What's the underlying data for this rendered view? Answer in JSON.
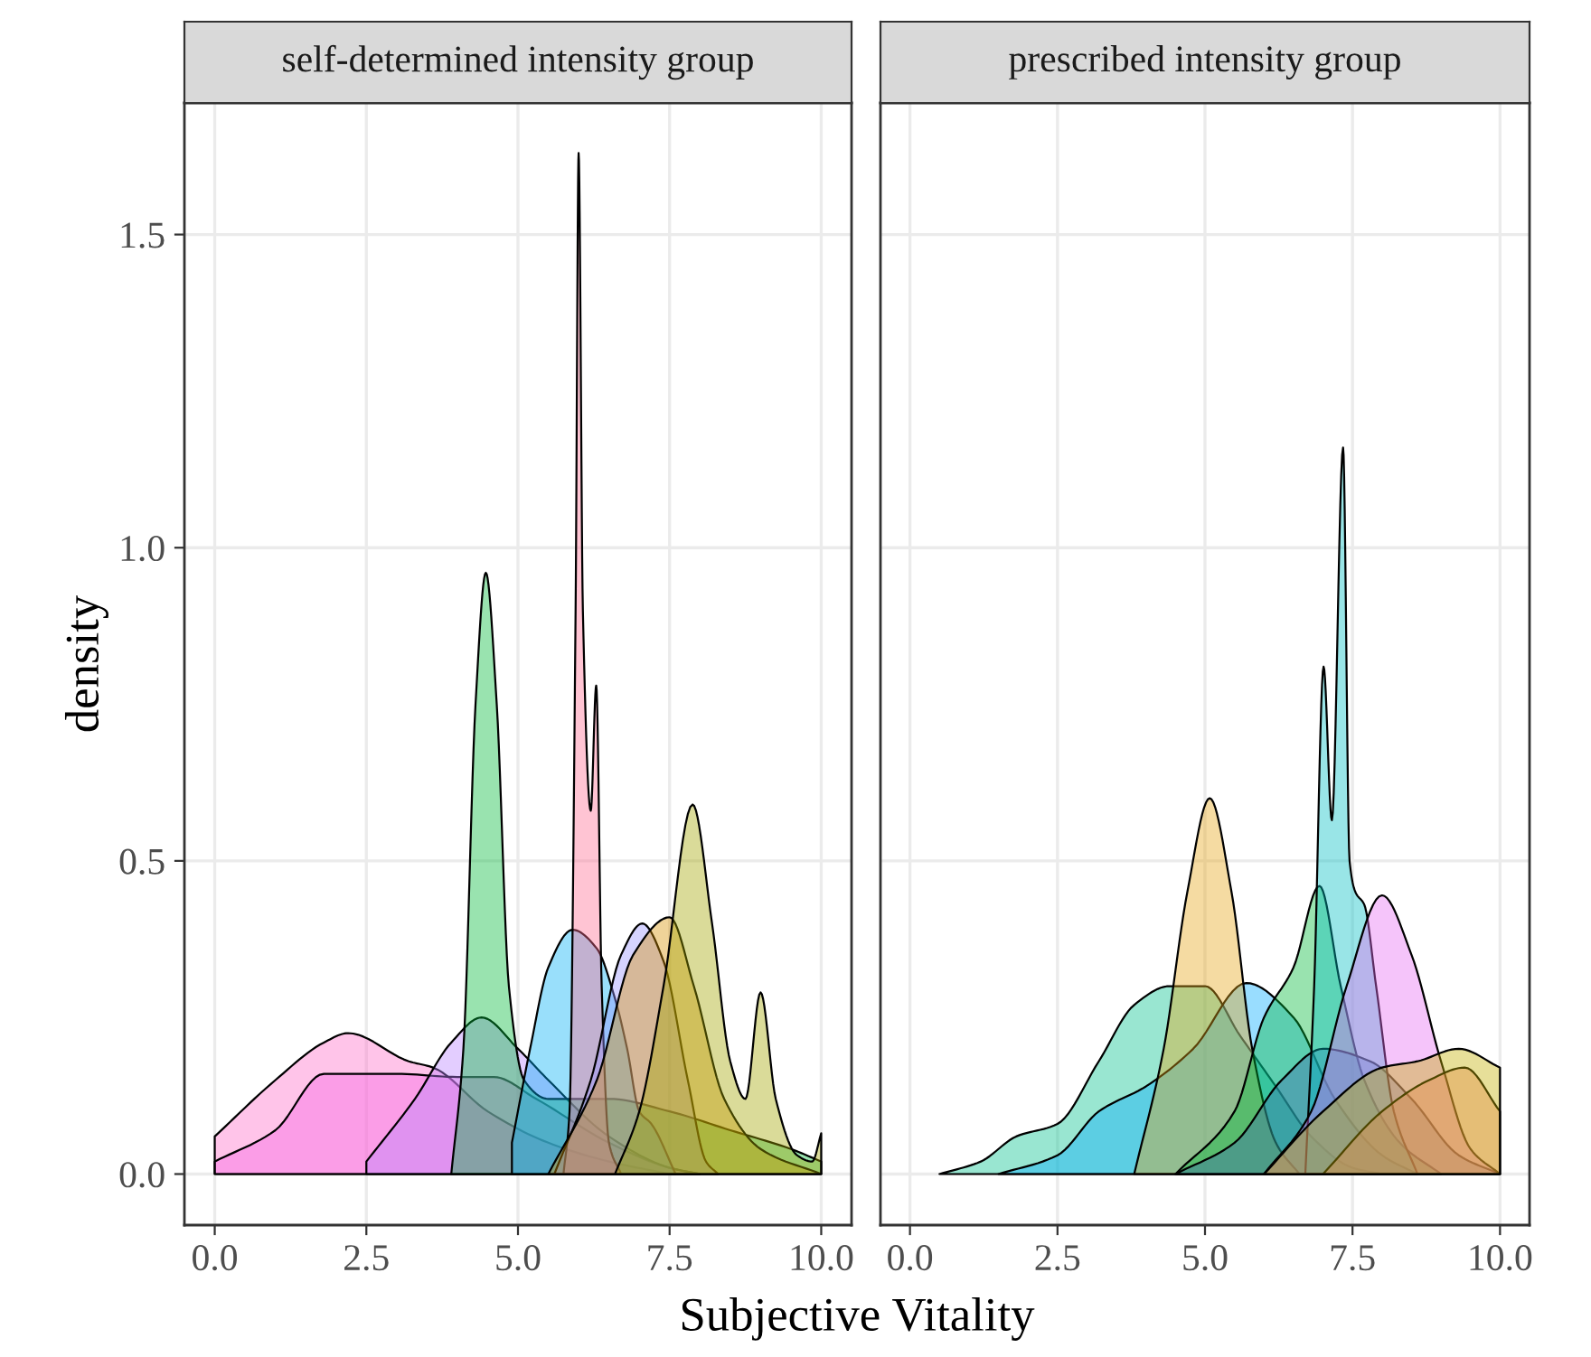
{
  "chart_data": [
    {
      "type": "area",
      "title": "self-determined intensity group",
      "xlabel": "Subjective Vitality",
      "ylabel": "density",
      "xlim": [
        -0.5,
        10.5
      ],
      "ylim": [
        -0.0815,
        1.71
      ],
      "xticks": [
        {
          "value": 0,
          "label": "0.0"
        },
        {
          "value": 2.5,
          "label": "2.5"
        },
        {
          "value": 5,
          "label": "5.0"
        },
        {
          "value": 7.5,
          "label": "7.5"
        },
        {
          "value": 10,
          "label": "10.0"
        }
      ],
      "yticks": [
        {
          "value": 0,
          "label": "0.0"
        },
        {
          "value": 0.5,
          "label": "0.5"
        },
        {
          "value": 1,
          "label": "1.0"
        },
        {
          "value": 1.5,
          "label": "1.5"
        }
      ],
      "grid": true,
      "series": [
        {
          "color": "#FF6CC8",
          "x": [
            0,
            1,
            1.8,
            2.2,
            3.2,
            3.6,
            4.5,
            5.5,
            6.5,
            7.5
          ],
          "values": [
            0.06,
            0.15,
            0.21,
            0.225,
            0.18,
            0.17,
            0.1,
            0.05,
            0.02,
            0
          ]
        },
        {
          "color": "#F564E3",
          "x": [
            0,
            1,
            1.8,
            3,
            4,
            4.6,
            5.3,
            6.5,
            7.5,
            8
          ],
          "values": [
            0.02,
            0.07,
            0.16,
            0.16,
            0.155,
            0.155,
            0.12,
            0.05,
            0.01,
            0
          ]
        },
        {
          "color": "#B983FF",
          "x": [
            2.5,
            3.3,
            3.9,
            4.4,
            5.0,
            5.5,
            6.5,
            7.5,
            8
          ],
          "values": [
            0.02,
            0.12,
            0.21,
            0.25,
            0.2,
            0.15,
            0.06,
            0.01,
            0
          ]
        },
        {
          "color": "#00BA38",
          "x": [
            3.9,
            4.1,
            4.3,
            4.47,
            4.65,
            4.85,
            5.1,
            5.5,
            6.5,
            7.5,
            8.5,
            9.5,
            10
          ],
          "values": [
            0,
            0.2,
            0.75,
            0.96,
            0.75,
            0.3,
            0.15,
            0.12,
            0.12,
            0.1,
            0.07,
            0.04,
            0.02
          ]
        },
        {
          "color": "#00B0F6",
          "x": [
            4.9,
            5.2,
            5.5,
            5.9,
            6.3,
            6.6,
            6.8,
            7.0,
            7.2,
            7.6
          ],
          "values": [
            0.05,
            0.2,
            0.33,
            0.39,
            0.36,
            0.28,
            0.2,
            0.1,
            0.08,
            0
          ]
        },
        {
          "color": "#FF6C91",
          "x": [
            5.75,
            5.85,
            5.95,
            6.0,
            6.07,
            6.2,
            6.29,
            6.38,
            6.5,
            6.7
          ],
          "values": [
            0,
            0.1,
            0.9,
            1.63,
            0.9,
            0.58,
            0.78,
            0.3,
            0.05,
            0
          ]
        },
        {
          "color": "#9590FF",
          "x": [
            5.6,
            6.2,
            6.7,
            7.05,
            7.4,
            7.8,
            8.1,
            8.3
          ],
          "values": [
            0,
            0.15,
            0.35,
            0.4,
            0.34,
            0.15,
            0.02,
            0
          ]
        },
        {
          "color": "#D89000",
          "x": [
            5.5,
            6.3,
            6.9,
            7.5,
            7.9,
            8.4,
            9,
            10
          ],
          "values": [
            0,
            0.15,
            0.35,
            0.41,
            0.3,
            0.12,
            0.04,
            0
          ]
        },
        {
          "color": "#A3A500",
          "x": [
            6.6,
            7.0,
            7.4,
            7.88,
            8.2,
            8.5,
            8.75,
            9.0,
            9.25,
            9.6,
            9.85,
            10
          ],
          "values": [
            0,
            0.1,
            0.3,
            0.59,
            0.4,
            0.18,
            0.12,
            0.29,
            0.12,
            0.03,
            0.02,
            0.065
          ]
        }
      ]
    },
    {
      "type": "area",
      "title": "prescribed intensity group",
      "xlim": [
        -0.5,
        10.5
      ],
      "ylim": [
        -0.0815,
        1.71
      ],
      "xticks": [
        {
          "value": 0,
          "label": "0.0"
        },
        {
          "value": 2.5,
          "label": "2.5"
        },
        {
          "value": 5,
          "label": "5.0"
        },
        {
          "value": 7.5,
          "label": "7.5"
        },
        {
          "value": 10,
          "label": "10.0"
        }
      ],
      "yticks": [
        0,
        0.5,
        1,
        1.5
      ],
      "grid": true,
      "tick_labels": "x",
      "series": [
        {
          "color": "#00C08B",
          "x": [
            0.5,
            1.2,
            1.8,
            2.5,
            3.2,
            3.8,
            4.4,
            5.0,
            5.6,
            6.2,
            6.8,
            7.5,
            8
          ],
          "values": [
            0,
            0.02,
            0.06,
            0.08,
            0.18,
            0.27,
            0.3,
            0.3,
            0.22,
            0.14,
            0.06,
            0.01,
            0
          ]
        },
        {
          "color": "#00A9FF",
          "x": [
            1.5,
            2.5,
            3.2,
            4.0,
            4.8,
            5.7,
            6.5,
            7.2,
            8,
            8.6
          ],
          "values": [
            0,
            0.03,
            0.1,
            0.14,
            0.2,
            0.305,
            0.25,
            0.12,
            0.03,
            0
          ]
        },
        {
          "color": "#E7A416",
          "x": [
            3.8,
            4.3,
            4.7,
            5.08,
            5.45,
            5.8,
            6.2,
            6.6
          ],
          "values": [
            0,
            0.2,
            0.45,
            0.6,
            0.45,
            0.2,
            0.05,
            0
          ]
        },
        {
          "color": "#00BA38",
          "x": [
            4.5,
            5.5,
            6.0,
            6.5,
            6.94,
            7.3,
            7.7,
            8.3,
            9
          ],
          "values": [
            0,
            0.1,
            0.25,
            0.33,
            0.46,
            0.3,
            0.15,
            0.05,
            0
          ]
        },
        {
          "color": "#3E6FB0",
          "x": [
            4.5,
            5.5,
            6.3,
            7.0,
            7.8,
            8.5,
            9.3,
            10
          ],
          "values": [
            0,
            0.05,
            0.15,
            0.2,
            0.18,
            0.12,
            0.03,
            0
          ]
        },
        {
          "color": "#00BFC4",
          "x": [
            6.7,
            6.85,
            7.01,
            7.15,
            7.34,
            7.45,
            7.55,
            7.7,
            7.9,
            8.2,
            8.6
          ],
          "values": [
            0,
            0.3,
            0.81,
            0.565,
            1.16,
            0.5,
            0.45,
            0.43,
            0.3,
            0.1,
            0
          ]
        },
        {
          "color": "#E76BF3",
          "x": [
            6.0,
            6.8,
            7.4,
            8.0,
            8.5,
            9.0,
            9.5,
            10
          ],
          "values": [
            0,
            0.1,
            0.3,
            0.445,
            0.35,
            0.18,
            0.04,
            0
          ]
        },
        {
          "color": "#F8766D",
          "x": [
            7,
            8,
            8.8,
            9.4,
            10
          ],
          "values": [
            0,
            0.1,
            0.15,
            0.17,
            0.1
          ]
        },
        {
          "color": "#C4B000",
          "x": [
            6,
            7,
            8,
            8.6,
            9.3,
            10
          ],
          "values": [
            0,
            0.1,
            0.17,
            0.18,
            0.2,
            0.17
          ]
        }
      ]
    }
  ]
}
